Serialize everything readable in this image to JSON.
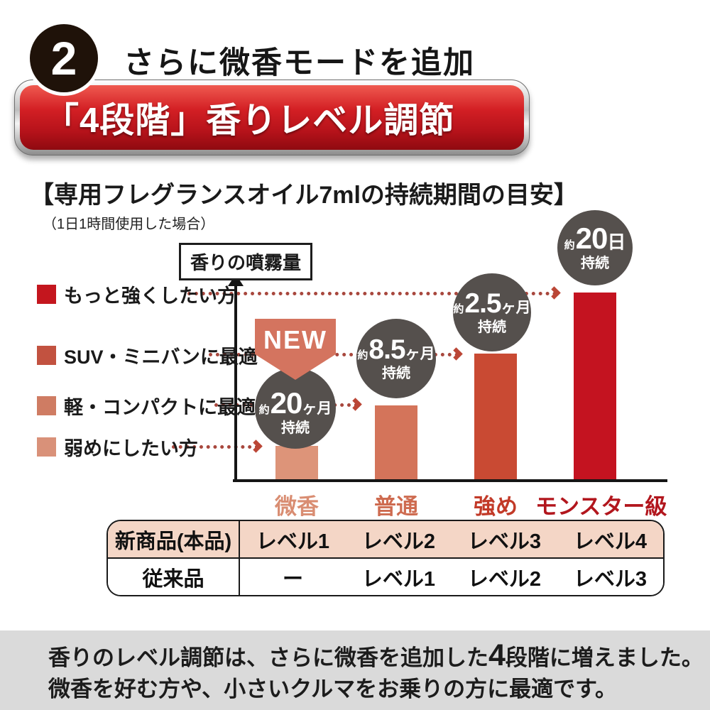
{
  "header": {
    "step_number": "2",
    "title": "さらに微香モードを追加"
  },
  "banner": {
    "label": "「4段階」香りレベル調節",
    "accent_color": "#c8161e"
  },
  "section": {
    "title": "【専用フレグランスオイル7mlの持続期間の目安】",
    "subtitle": "（1日1時間使用した場合）"
  },
  "chart_data": {
    "type": "bar",
    "title": "専用フレグランスオイル7mlの持続期間の目安（1日1時間使用した場合）",
    "ylabel": "香りの噴霧量",
    "xlabel": "",
    "categories": [
      "微香",
      "普通",
      "強め",
      "モンスター級"
    ],
    "series": [
      {
        "name": "香りの噴霧量（相対レベル）",
        "values": [
          1,
          2,
          3,
          4
        ]
      }
    ],
    "bar_colors": [
      "#dd9479",
      "#d4745a",
      "#c94a33",
      "#c41320"
    ],
    "annotations": [
      {
        "category": "微香",
        "text": "約20ヶ月持続",
        "badge": "NEW"
      },
      {
        "category": "普通",
        "text": "約8.5ヶ月持続"
      },
      {
        "category": "強め",
        "text": "約2.5ヶ月持続"
      },
      {
        "category": "モンスター級",
        "text": "約20日持続"
      }
    ],
    "legend_position": "left",
    "grid": false
  },
  "chart": {
    "ylabel": "香りの噴霧量",
    "new_badge": {
      "label": "NEW",
      "color": "#d4745f"
    },
    "bubble_color": "#55504d",
    "arrow_color": "#a8473d",
    "legend": [
      {
        "label": "もっと強くしたい方",
        "color": "#c4161e"
      },
      {
        "label": "SUV・ミニバンに最適",
        "color": "#c25240"
      },
      {
        "label": "軽・コンパクトに最適",
        "color": "#cf7c63"
      },
      {
        "label": "弱めにしたい方",
        "color": "#d99179"
      }
    ],
    "bubbles": [
      {
        "approx": "約",
        "value": "20",
        "unit": "ヶ月",
        "sub": "持続"
      },
      {
        "approx": "約",
        "value": "8.5",
        "unit": "ヶ月",
        "sub": "持続"
      },
      {
        "approx": "約",
        "value": "2.5",
        "unit": "ヶ月",
        "sub": "持続"
      },
      {
        "approx": "約",
        "value": "20",
        "unit": "日",
        "sub": "持続"
      }
    ],
    "bars": [
      {
        "category": "微香",
        "color": "#dd9479",
        "label_color": "#d98d72"
      },
      {
        "category": "普通",
        "color": "#d4745a",
        "label_color": "#ce6b50"
      },
      {
        "category": "強め",
        "color": "#c94a33",
        "label_color": "#c23a28"
      },
      {
        "category": "モンスター級",
        "color": "#c41320",
        "label_color": "#b2161d"
      }
    ]
  },
  "table": {
    "rows": [
      {
        "header": "新商品(本品)",
        "cells": [
          "レベル1",
          "レベル2",
          "レベル3",
          "レベル4"
        ],
        "bg": "#f4d6c6"
      },
      {
        "header": "従来品",
        "cells": [
          "ー",
          "レベル1",
          "レベル2",
          "レベル3"
        ],
        "bg": "#ffffff"
      }
    ]
  },
  "footer": {
    "bg_color": "#dadada",
    "line1_pre": "香りのレベル調節は、さらに微香を追加した",
    "line1_emphasis": "4",
    "line1_post": "段階に増えました。",
    "line2": "微香を好む方や、小さいクルマをお乗りの方に最適です。"
  }
}
